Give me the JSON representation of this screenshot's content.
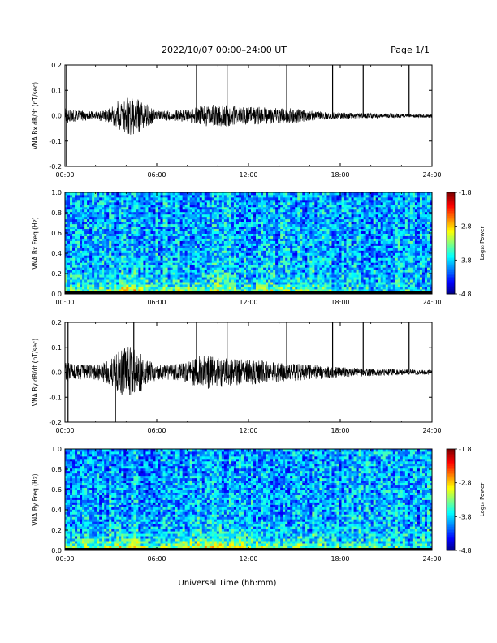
{
  "header": {
    "title": "2022/10/07  00:00–24:00 UT",
    "page": "Page 1/1"
  },
  "x_axis_label": "Universal Time (hh:mm)",
  "chart_data": [
    {
      "type": "line",
      "ylabel": "VNA Bx dB/dt (nT/sec)",
      "xlim": [
        0,
        24
      ],
      "ylim": [
        -0.2,
        0.2
      ],
      "xticks": [
        "00:00",
        "06:00",
        "12:00",
        "18:00",
        "24:00"
      ],
      "yticks": [
        "0.2",
        "0.1",
        "0.0",
        "-0.1",
        "-0.2"
      ],
      "envelope": {
        "hours": [
          0,
          1,
          2,
          3,
          3.5,
          4,
          4.5,
          5,
          5.5,
          6,
          7,
          8,
          9,
          10,
          11,
          12,
          13,
          14,
          15,
          16,
          17,
          18,
          20,
          22,
          24
        ],
        "amplitude": [
          0.03,
          0.02,
          0.018,
          0.03,
          0.06,
          0.07,
          0.08,
          0.06,
          0.04,
          0.02,
          0.02,
          0.025,
          0.04,
          0.045,
          0.04,
          0.035,
          0.035,
          0.03,
          0.03,
          0.02,
          0.015,
          0.012,
          0.01,
          0.008,
          0.007
        ]
      },
      "spikes": [
        {
          "hour": 0.1,
          "top": 0.2,
          "bottom": -0.2
        },
        {
          "hour": 8.6,
          "top": 0.2,
          "bottom": 0.0
        },
        {
          "hour": 10.6,
          "top": 0.2,
          "bottom": 0.0
        },
        {
          "hour": 14.5,
          "top": 0.2,
          "bottom": 0.0
        },
        {
          "hour": 17.5,
          "top": 0.2,
          "bottom": 0.0
        },
        {
          "hour": 19.5,
          "top": 0.2,
          "bottom": 0.0
        },
        {
          "hour": 22.5,
          "top": 0.2,
          "bottom": 0.0
        }
      ]
    },
    {
      "type": "heatmap",
      "ylabel": "VNA Bx Freq (Hz)",
      "xlim": [
        0,
        24
      ],
      "ylim": [
        0,
        1.0
      ],
      "xticks": [
        "00:00",
        "06:00",
        "12:00",
        "18:00",
        "24:00"
      ],
      "yticks": [
        "1.0",
        "0.8",
        "0.6",
        "0.4",
        "0.2",
        "0.0"
      ],
      "colorbar": {
        "label": "Log₁₀ Power",
        "min": -4.8,
        "max": -1.8,
        "ticks": [
          "-1.8",
          "-2.8",
          "-3.8",
          "-4.8"
        ]
      },
      "activity": {
        "hours": [
          0,
          2,
          3,
          4,
          4.5,
          5,
          6,
          8,
          9,
          10,
          12,
          14,
          16,
          18,
          20,
          24
        ],
        "level": [
          0.45,
          0.35,
          0.5,
          0.75,
          0.85,
          0.7,
          0.4,
          0.45,
          0.55,
          0.5,
          0.5,
          0.45,
          0.4,
          0.3,
          0.25,
          0.2
        ]
      }
    },
    {
      "type": "line",
      "ylabel": "VNA By dB/dt (nT/sec)",
      "xlim": [
        0,
        24
      ],
      "ylim": [
        -0.2,
        0.2
      ],
      "xticks": [
        "00:00",
        "06:00",
        "12:00",
        "18:00",
        "24:00"
      ],
      "yticks": [
        "0.2",
        "0.1",
        "0.0",
        "-0.1",
        "-0.2"
      ],
      "envelope": {
        "hours": [
          0,
          1,
          2,
          3,
          3.5,
          4,
          4.5,
          5,
          5.5,
          6,
          7,
          8,
          8.5,
          9,
          10,
          11,
          12,
          13,
          14,
          15,
          16,
          17,
          18,
          20,
          22,
          24
        ],
        "amplitude": [
          0.04,
          0.03,
          0.03,
          0.05,
          0.09,
          0.1,
          0.1,
          0.08,
          0.05,
          0.03,
          0.03,
          0.04,
          0.06,
          0.07,
          0.06,
          0.055,
          0.05,
          0.045,
          0.04,
          0.035,
          0.03,
          0.025,
          0.02,
          0.015,
          0.012,
          0.01
        ]
      },
      "spikes": [
        {
          "hour": 0.2,
          "top": 0.2,
          "bottom": -0.2
        },
        {
          "hour": 3.3,
          "top": 0.0,
          "bottom": -0.2
        },
        {
          "hour": 4.5,
          "top": 0.2,
          "bottom": 0.0
        },
        {
          "hour": 8.6,
          "top": 0.2,
          "bottom": 0.0
        },
        {
          "hour": 10.6,
          "top": 0.2,
          "bottom": 0.0
        },
        {
          "hour": 14.5,
          "top": 0.2,
          "bottom": 0.0
        },
        {
          "hour": 17.5,
          "top": 0.2,
          "bottom": 0.0
        },
        {
          "hour": 19.5,
          "top": 0.2,
          "bottom": 0.0
        },
        {
          "hour": 22.5,
          "top": 0.2,
          "bottom": 0.0
        }
      ]
    },
    {
      "type": "heatmap",
      "ylabel": "VNA By Freq (Hz)",
      "xlim": [
        0,
        24
      ],
      "ylim": [
        0,
        1.0
      ],
      "xticks": [
        "00:00",
        "06:00",
        "12:00",
        "18:00",
        "24:00"
      ],
      "yticks": [
        "1.0",
        "0.8",
        "0.6",
        "0.4",
        "0.2",
        "0.0"
      ],
      "colorbar": {
        "label": "Log₁₀ Power",
        "min": -4.8,
        "max": -1.8,
        "ticks": [
          "-1.8",
          "-2.8",
          "-3.8",
          "-4.8"
        ]
      },
      "activity": {
        "hours": [
          0,
          2,
          3,
          4,
          4.5,
          5,
          6,
          8,
          9,
          10,
          11,
          12,
          14,
          16,
          18,
          20,
          24
        ],
        "level": [
          0.5,
          0.45,
          0.6,
          0.8,
          0.85,
          0.7,
          0.5,
          0.6,
          0.7,
          0.65,
          0.6,
          0.55,
          0.5,
          0.45,
          0.35,
          0.3,
          0.25
        ]
      }
    }
  ]
}
